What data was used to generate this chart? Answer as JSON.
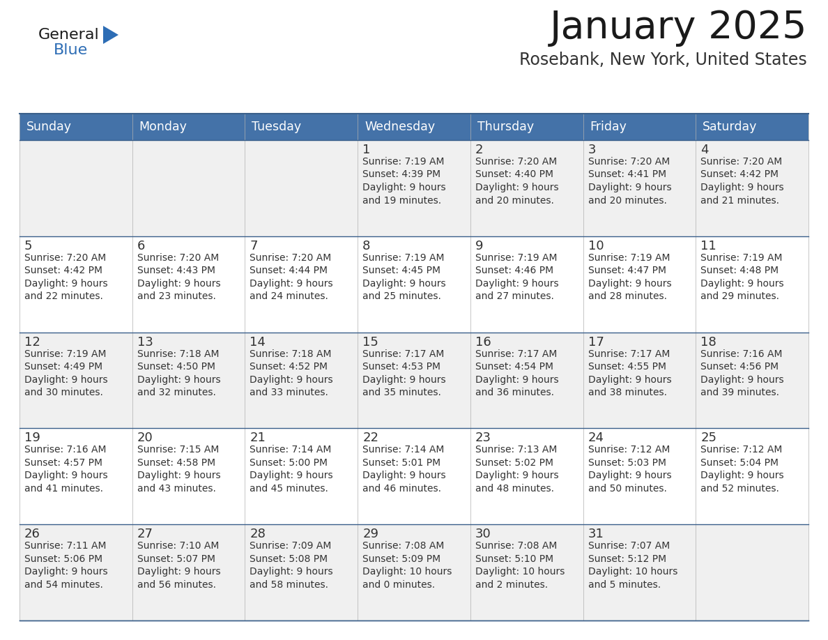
{
  "title": "January 2025",
  "subtitle": "Rosebank, New York, United States",
  "days_of_week": [
    "Sunday",
    "Monday",
    "Tuesday",
    "Wednesday",
    "Thursday",
    "Friday",
    "Saturday"
  ],
  "header_bg": "#4472a8",
  "header_text": "#ffffff",
  "row_bg_odd": "#f0f0f0",
  "row_bg_even": "#ffffff",
  "cell_text": "#333333",
  "title_color": "#1a1a1a",
  "subtitle_color": "#333333",
  "logo_general_color": "#1a1a1a",
  "logo_blue_color": "#2d6db5",
  "separator_color": "#3a5f8a",
  "calendar_data": [
    [
      {
        "day": "",
        "sunrise": "",
        "sunset": "",
        "daylight_h": "",
        "daylight_m": ""
      },
      {
        "day": "",
        "sunrise": "",
        "sunset": "",
        "daylight_h": "",
        "daylight_m": ""
      },
      {
        "day": "",
        "sunrise": "",
        "sunset": "",
        "daylight_h": "",
        "daylight_m": ""
      },
      {
        "day": "1",
        "sunrise": "7:19 AM",
        "sunset": "4:39 PM",
        "daylight_h": "9 hours",
        "daylight_m": "and 19 minutes."
      },
      {
        "day": "2",
        "sunrise": "7:20 AM",
        "sunset": "4:40 PM",
        "daylight_h": "9 hours",
        "daylight_m": "and 20 minutes."
      },
      {
        "day": "3",
        "sunrise": "7:20 AM",
        "sunset": "4:41 PM",
        "daylight_h": "9 hours",
        "daylight_m": "and 20 minutes."
      },
      {
        "day": "4",
        "sunrise": "7:20 AM",
        "sunset": "4:42 PM",
        "daylight_h": "9 hours",
        "daylight_m": "and 21 minutes."
      }
    ],
    [
      {
        "day": "5",
        "sunrise": "7:20 AM",
        "sunset": "4:42 PM",
        "daylight_h": "9 hours",
        "daylight_m": "and 22 minutes."
      },
      {
        "day": "6",
        "sunrise": "7:20 AM",
        "sunset": "4:43 PM",
        "daylight_h": "9 hours",
        "daylight_m": "and 23 minutes."
      },
      {
        "day": "7",
        "sunrise": "7:20 AM",
        "sunset": "4:44 PM",
        "daylight_h": "9 hours",
        "daylight_m": "and 24 minutes."
      },
      {
        "day": "8",
        "sunrise": "7:19 AM",
        "sunset": "4:45 PM",
        "daylight_h": "9 hours",
        "daylight_m": "and 25 minutes."
      },
      {
        "day": "9",
        "sunrise": "7:19 AM",
        "sunset": "4:46 PM",
        "daylight_h": "9 hours",
        "daylight_m": "and 27 minutes."
      },
      {
        "day": "10",
        "sunrise": "7:19 AM",
        "sunset": "4:47 PM",
        "daylight_h": "9 hours",
        "daylight_m": "and 28 minutes."
      },
      {
        "day": "11",
        "sunrise": "7:19 AM",
        "sunset": "4:48 PM",
        "daylight_h": "9 hours",
        "daylight_m": "and 29 minutes."
      }
    ],
    [
      {
        "day": "12",
        "sunrise": "7:19 AM",
        "sunset": "4:49 PM",
        "daylight_h": "9 hours",
        "daylight_m": "and 30 minutes."
      },
      {
        "day": "13",
        "sunrise": "7:18 AM",
        "sunset": "4:50 PM",
        "daylight_h": "9 hours",
        "daylight_m": "and 32 minutes."
      },
      {
        "day": "14",
        "sunrise": "7:18 AM",
        "sunset": "4:52 PM",
        "daylight_h": "9 hours",
        "daylight_m": "and 33 minutes."
      },
      {
        "day": "15",
        "sunrise": "7:17 AM",
        "sunset": "4:53 PM",
        "daylight_h": "9 hours",
        "daylight_m": "and 35 minutes."
      },
      {
        "day": "16",
        "sunrise": "7:17 AM",
        "sunset": "4:54 PM",
        "daylight_h": "9 hours",
        "daylight_m": "and 36 minutes."
      },
      {
        "day": "17",
        "sunrise": "7:17 AM",
        "sunset": "4:55 PM",
        "daylight_h": "9 hours",
        "daylight_m": "and 38 minutes."
      },
      {
        "day": "18",
        "sunrise": "7:16 AM",
        "sunset": "4:56 PM",
        "daylight_h": "9 hours",
        "daylight_m": "and 39 minutes."
      }
    ],
    [
      {
        "day": "19",
        "sunrise": "7:16 AM",
        "sunset": "4:57 PM",
        "daylight_h": "9 hours",
        "daylight_m": "and 41 minutes."
      },
      {
        "day": "20",
        "sunrise": "7:15 AM",
        "sunset": "4:58 PM",
        "daylight_h": "9 hours",
        "daylight_m": "and 43 minutes."
      },
      {
        "day": "21",
        "sunrise": "7:14 AM",
        "sunset": "5:00 PM",
        "daylight_h": "9 hours",
        "daylight_m": "and 45 minutes."
      },
      {
        "day": "22",
        "sunrise": "7:14 AM",
        "sunset": "5:01 PM",
        "daylight_h": "9 hours",
        "daylight_m": "and 46 minutes."
      },
      {
        "day": "23",
        "sunrise": "7:13 AM",
        "sunset": "5:02 PM",
        "daylight_h": "9 hours",
        "daylight_m": "and 48 minutes."
      },
      {
        "day": "24",
        "sunrise": "7:12 AM",
        "sunset": "5:03 PM",
        "daylight_h": "9 hours",
        "daylight_m": "and 50 minutes."
      },
      {
        "day": "25",
        "sunrise": "7:12 AM",
        "sunset": "5:04 PM",
        "daylight_h": "9 hours",
        "daylight_m": "and 52 minutes."
      }
    ],
    [
      {
        "day": "26",
        "sunrise": "7:11 AM",
        "sunset": "5:06 PM",
        "daylight_h": "9 hours",
        "daylight_m": "and 54 minutes."
      },
      {
        "day": "27",
        "sunrise": "7:10 AM",
        "sunset": "5:07 PM",
        "daylight_h": "9 hours",
        "daylight_m": "and 56 minutes."
      },
      {
        "day": "28",
        "sunrise": "7:09 AM",
        "sunset": "5:08 PM",
        "daylight_h": "9 hours",
        "daylight_m": "and 58 minutes."
      },
      {
        "day": "29",
        "sunrise": "7:08 AM",
        "sunset": "5:09 PM",
        "daylight_h": "10 hours",
        "daylight_m": "and 0 minutes."
      },
      {
        "day": "30",
        "sunrise": "7:08 AM",
        "sunset": "5:10 PM",
        "daylight_h": "10 hours",
        "daylight_m": "and 2 minutes."
      },
      {
        "day": "31",
        "sunrise": "7:07 AM",
        "sunset": "5:12 PM",
        "daylight_h": "10 hours",
        "daylight_m": "and 5 minutes."
      },
      {
        "day": "",
        "sunrise": "",
        "sunset": "",
        "daylight_h": "",
        "daylight_m": ""
      }
    ]
  ]
}
